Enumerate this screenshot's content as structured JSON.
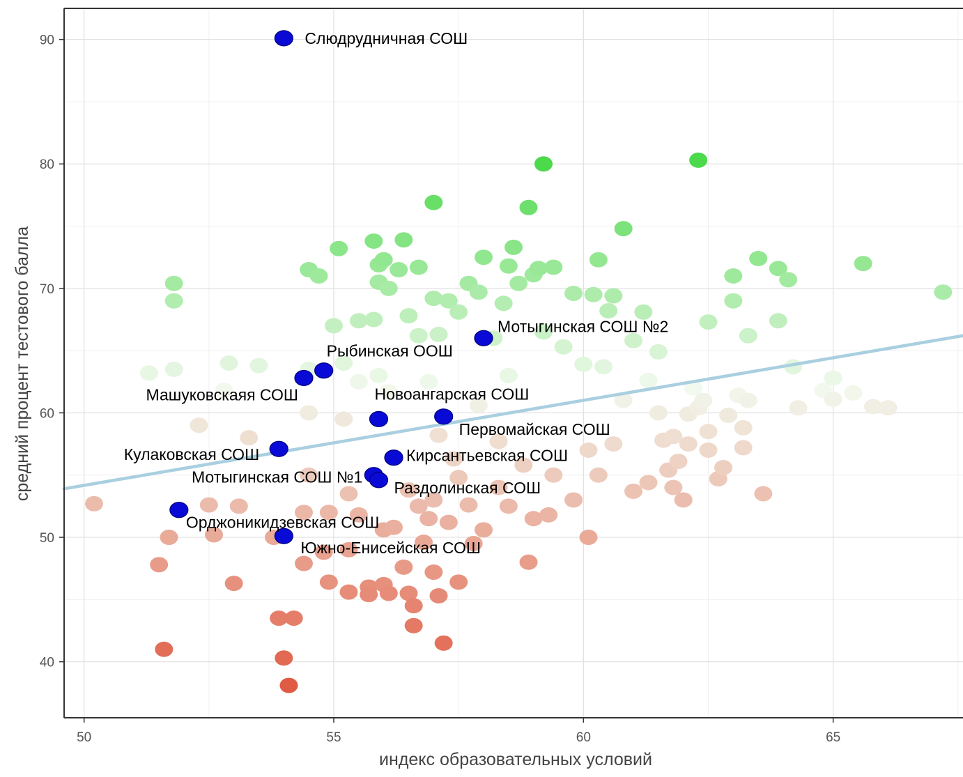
{
  "chart_data": {
    "type": "scatter",
    "title": "",
    "xlabel": "индекс образовательных условий",
    "ylabel": "средний процент тестового балла",
    "xlim": [
      49.6,
      67.6
    ],
    "ylim": [
      35.5,
      92.5
    ],
    "x_ticks": [
      50,
      55,
      60,
      65
    ],
    "y_ticks": [
      40,
      50,
      60,
      70,
      80,
      90
    ],
    "grid": true,
    "legend": "none",
    "trend_line": {
      "color": "#a9cfe0",
      "points": [
        [
          49.6,
          53.9
        ],
        [
          67.6,
          66.2
        ]
      ]
    },
    "color_scale": {
      "low": "#e05a42",
      "mid": "#f2f9ee",
      "high": "#4cd94c",
      "low_value": 38,
      "mid_value": 62,
      "high_value": 80
    },
    "highlight_color": "#0a0ad6",
    "background_points": [
      [
        50.2,
        52.7
      ],
      [
        51.3,
        63.2
      ],
      [
        51.8,
        63.5
      ],
      [
        51.8,
        69.0
      ],
      [
        51.8,
        70.4
      ],
      [
        51.5,
        47.8
      ],
      [
        51.6,
        41.0
      ],
      [
        51.7,
        50.0
      ],
      [
        52.3,
        59.0
      ],
      [
        52.5,
        52.6
      ],
      [
        52.6,
        50.2
      ],
      [
        52.8,
        61.8
      ],
      [
        52.9,
        64.0
      ],
      [
        53.0,
        46.3
      ],
      [
        53.1,
        52.5
      ],
      [
        53.3,
        58.0
      ],
      [
        53.5,
        63.8
      ],
      [
        53.8,
        50.0
      ],
      [
        53.9,
        43.5
      ],
      [
        54.0,
        40.3
      ],
      [
        54.1,
        38.1
      ],
      [
        54.2,
        43.5
      ],
      [
        54.4,
        52.0
      ],
      [
        54.4,
        47.9
      ],
      [
        54.5,
        71.5
      ],
      [
        54.5,
        63.5
      ],
      [
        54.5,
        60.0
      ],
      [
        54.5,
        55.0
      ],
      [
        54.7,
        71.0
      ],
      [
        54.8,
        48.8
      ],
      [
        54.9,
        52.0
      ],
      [
        54.9,
        46.4
      ],
      [
        55.0,
        67.0
      ],
      [
        55.1,
        73.2
      ],
      [
        55.2,
        64.0
      ],
      [
        55.2,
        59.5
      ],
      [
        55.3,
        53.5
      ],
      [
        55.3,
        49.0
      ],
      [
        55.3,
        45.6
      ],
      [
        55.5,
        67.4
      ],
      [
        55.5,
        62.5
      ],
      [
        55.5,
        51.8
      ],
      [
        55.7,
        46.0
      ],
      [
        55.7,
        45.4
      ],
      [
        55.8,
        73.8
      ],
      [
        55.8,
        67.5
      ],
      [
        55.9,
        71.9
      ],
      [
        55.9,
        70.5
      ],
      [
        55.9,
        63.0
      ],
      [
        56.0,
        72.3
      ],
      [
        56.0,
        50.6
      ],
      [
        56.0,
        46.2
      ],
      [
        56.1,
        70.0
      ],
      [
        56.1,
        61.7
      ],
      [
        56.1,
        45.5
      ],
      [
        56.2,
        50.8
      ],
      [
        56.3,
        71.5
      ],
      [
        56.4,
        73.9
      ],
      [
        56.4,
        47.6
      ],
      [
        56.5,
        67.8
      ],
      [
        56.5,
        53.8
      ],
      [
        56.5,
        45.5
      ],
      [
        56.6,
        44.5
      ],
      [
        56.6,
        42.9
      ],
      [
        56.7,
        71.7
      ],
      [
        56.7,
        66.2
      ],
      [
        56.7,
        52.5
      ],
      [
        56.8,
        49.6
      ],
      [
        56.9,
        62.5
      ],
      [
        56.9,
        51.5
      ],
      [
        57.0,
        69.2
      ],
      [
        57.0,
        53.0
      ],
      [
        57.0,
        47.2
      ],
      [
        57.0,
        76.9
      ],
      [
        57.1,
        66.3
      ],
      [
        57.1,
        58.2
      ],
      [
        57.1,
        45.3
      ],
      [
        57.2,
        41.5
      ],
      [
        57.3,
        69.0
      ],
      [
        57.3,
        51.2
      ],
      [
        57.4,
        56.3
      ],
      [
        57.5,
        68.1
      ],
      [
        57.5,
        54.8
      ],
      [
        57.5,
        46.4
      ],
      [
        57.7,
        70.4
      ],
      [
        57.7,
        52.6
      ],
      [
        57.8,
        49.5
      ],
      [
        57.9,
        69.7
      ],
      [
        57.9,
        60.6
      ],
      [
        58.0,
        72.5
      ],
      [
        58.0,
        50.6
      ],
      [
        58.2,
        66.0
      ],
      [
        58.3,
        57.7
      ],
      [
        58.3,
        54.0
      ],
      [
        58.4,
        68.8
      ],
      [
        58.5,
        71.8
      ],
      [
        58.5,
        63.0
      ],
      [
        58.5,
        52.5
      ],
      [
        58.6,
        73.3
      ],
      [
        58.7,
        70.4
      ],
      [
        58.8,
        55.8
      ],
      [
        58.9,
        76.5
      ],
      [
        58.9,
        48.0
      ],
      [
        59.0,
        71.1
      ],
      [
        59.0,
        51.5
      ],
      [
        59.1,
        71.6
      ],
      [
        59.2,
        80.0
      ],
      [
        59.2,
        66.5
      ],
      [
        59.3,
        51.8
      ],
      [
        59.4,
        71.7
      ],
      [
        59.4,
        55.0
      ],
      [
        59.6,
        65.3
      ],
      [
        59.8,
        69.6
      ],
      [
        59.8,
        53.0
      ],
      [
        60.0,
        63.9
      ],
      [
        60.1,
        50.0
      ],
      [
        60.1,
        57.0
      ],
      [
        60.2,
        69.5
      ],
      [
        60.3,
        72.3
      ],
      [
        60.3,
        55.0
      ],
      [
        60.4,
        63.7
      ],
      [
        60.5,
        68.2
      ],
      [
        60.6,
        69.4
      ],
      [
        60.6,
        57.5
      ],
      [
        60.8,
        74.8
      ],
      [
        60.8,
        61.0
      ],
      [
        61.0,
        65.8
      ],
      [
        61.0,
        53.7
      ],
      [
        61.2,
        68.1
      ],
      [
        61.3,
        62.6
      ],
      [
        61.3,
        54.4
      ],
      [
        61.5,
        64.9
      ],
      [
        61.5,
        60.0
      ],
      [
        61.6,
        57.8
      ],
      [
        61.7,
        55.4
      ],
      [
        61.8,
        58.1
      ],
      [
        61.8,
        54.0
      ],
      [
        61.9,
        56.1
      ],
      [
        62.0,
        53.0
      ],
      [
        62.1,
        59.9
      ],
      [
        62.1,
        57.5
      ],
      [
        62.2,
        62.0
      ],
      [
        62.3,
        60.4
      ],
      [
        62.3,
        80.3
      ],
      [
        62.4,
        61.0
      ],
      [
        62.5,
        67.3
      ],
      [
        62.5,
        58.5
      ],
      [
        62.5,
        57.0
      ],
      [
        62.7,
        54.7
      ],
      [
        62.8,
        55.6
      ],
      [
        62.9,
        59.8
      ],
      [
        63.0,
        71.0
      ],
      [
        63.0,
        69.0
      ],
      [
        63.1,
        61.4
      ],
      [
        63.2,
        57.2
      ],
      [
        63.2,
        58.8
      ],
      [
        63.3,
        66.2
      ],
      [
        63.3,
        61.0
      ],
      [
        63.5,
        72.4
      ],
      [
        63.6,
        53.5
      ],
      [
        63.9,
        71.6
      ],
      [
        63.9,
        67.4
      ],
      [
        64.1,
        70.7
      ],
      [
        64.2,
        63.7
      ],
      [
        64.3,
        60.4
      ],
      [
        64.8,
        61.8
      ],
      [
        65.0,
        61.1
      ],
      [
        65.0,
        62.8
      ],
      [
        65.4,
        61.6
      ],
      [
        65.6,
        72.0
      ],
      [
        65.8,
        60.5
      ],
      [
        66.1,
        60.4
      ],
      [
        67.2,
        69.7
      ]
    ],
    "highlighted": [
      {
        "x": 54.0,
        "y": 90.1,
        "label": "Слюдрудничная СОШ",
        "anchor": "start"
      },
      {
        "x": 58.0,
        "y": 66.0,
        "label": "Мотыгинская СОШ №2",
        "anchor": "start"
      },
      {
        "x": 54.8,
        "y": 63.4,
        "label": "Рыбинская ООШ",
        "anchor": "start"
      },
      {
        "x": 54.4,
        "y": 62.8,
        "label": "Машуковскаяя СОШ",
        "anchor": "end"
      },
      {
        "x": 55.9,
        "y": 59.5,
        "label": "Новоангарская СОШ",
        "anchor": "start"
      },
      {
        "x": 57.2,
        "y": 59.7,
        "label": "Первомайская СОШ",
        "anchor": "start"
      },
      {
        "x": 53.9,
        "y": 57.1,
        "label": "Кулаковская  СОШ",
        "anchor": "end"
      },
      {
        "x": 56.2,
        "y": 56.4,
        "label": "Кирсантьевская СОШ",
        "anchor": "start"
      },
      {
        "x": 55.8,
        "y": 55.0,
        "label": "Мотыгинская СОШ №1",
        "anchor": "end"
      },
      {
        "x": 55.9,
        "y": 54.6,
        "label": "Раздолинская СОШ",
        "anchor": "start"
      },
      {
        "x": 51.9,
        "y": 52.2,
        "label": "Орджоникидзевская СОШ",
        "anchor": "start"
      },
      {
        "x": 54.0,
        "y": 50.1,
        "label": "Южно-Енисейская СОШ",
        "anchor": "start"
      }
    ]
  }
}
